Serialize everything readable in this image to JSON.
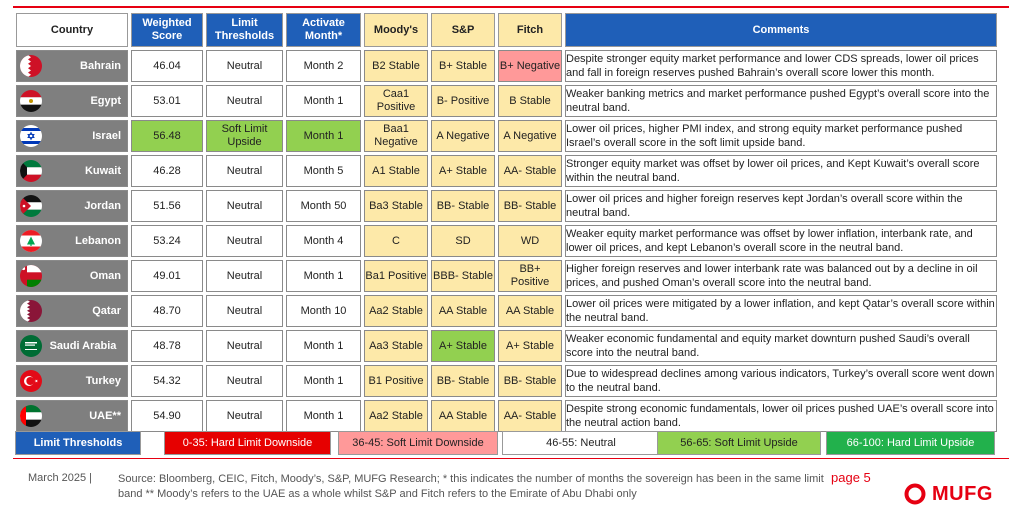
{
  "headers": {
    "country": "Country",
    "score": "Weighted Score",
    "limits": "Limit Thresholds",
    "month": "Activate Month*",
    "moodys": "Moody's",
    "sp": "S&P",
    "fitch": "Fitch",
    "comments": "Comments"
  },
  "rows": [
    {
      "country": "Bahrain",
      "score": "46.04",
      "limit": "Neutral",
      "month": "Month 2",
      "moodys": "B2 Stable",
      "sp": "B+ Stable",
      "fitch": "B+ Negative",
      "comment": "Despite stronger equity market performance and lower CDS spreads, lower oil prices and fall in foreign reserves pushed Bahrain’s overall score lower this month."
    },
    {
      "country": "Egypt",
      "score": "53.01",
      "limit": "Neutral",
      "month": "Month 1",
      "moodys": "Caa1 Positive",
      "sp": "B- Positive",
      "fitch": "B Stable",
      "comment": "Weaker banking metrics and market performance pushed Egypt’s overall score into the neutral band."
    },
    {
      "country": "Israel",
      "score": "56.48",
      "limit": "Soft Limit Upside",
      "month": "Month 1",
      "moodys": "Baa1 Negative",
      "sp": "A Negative",
      "fitch": "A Negative",
      "comment": "Lower oil prices, higher PMI index, and strong equity market performance pushed Israel’s overall score in the soft limit upside band."
    },
    {
      "country": "Kuwait",
      "score": "46.28",
      "limit": "Neutral",
      "month": "Month 5",
      "moodys": "A1 Stable",
      "sp": "A+ Stable",
      "fitch": "AA- Stable",
      "comment": "Stronger equity market was offset by lower oil prices, and Kept Kuwait’s overall score within the neutral band."
    },
    {
      "country": "Jordan",
      "score": "51.56",
      "limit": "Neutral",
      "month": "Month 50",
      "moodys": "Ba3 Stable",
      "sp": "BB- Stable",
      "fitch": "BB- Stable",
      "comment": "Lower oil prices and higher foreign reserves kept Jordan’s overall score within the neutral band."
    },
    {
      "country": "Lebanon",
      "score": "53.24",
      "limit": "Neutral",
      "month": "Month 4",
      "moodys": "C",
      "sp": "SD",
      "fitch": "WD",
      "comment": "Weaker equity market performance was offset by lower inflation, interbank rate, and lower oil prices, and kept Lebanon’s overall score in the neutral band."
    },
    {
      "country": "Oman",
      "score": "49.01",
      "limit": "Neutral",
      "month": "Month 1",
      "moodys": "Ba1 Positive",
      "sp": "BBB- Stable",
      "fitch": "BB+ Positive",
      "comment": "Higher foreign reserves and lower interbank rate was balanced out by a decline in oil prices, and pushed Oman’s overall score into the neutral band."
    },
    {
      "country": "Qatar",
      "score": "48.70",
      "limit": "Neutral",
      "month": "Month 10",
      "moodys": "Aa2 Stable",
      "sp": "AA Stable",
      "fitch": "AA Stable",
      "comment": "Lower oil prices were mitigated by a lower inflation, and kept Qatar’s overall score within the neutral band."
    },
    {
      "country": "Saudi Arabia",
      "score": "48.78",
      "limit": "Neutral",
      "month": "Month 1",
      "moodys": "Aa3 Stable",
      "sp": "A+ Stable",
      "fitch": "A+ Stable",
      "comment": "Weaker economic fundamental and equity market downturn pushed Saudi’s overall score into the neutral band."
    },
    {
      "country": "Turkey",
      "score": "54.32",
      "limit": "Neutral",
      "month": "Month 1",
      "moodys": "B1 Positive",
      "sp": "BB- Stable",
      "fitch": "BB- Stable",
      "comment": "Due to widespread declines among various indicators, Turkey’s overall score went down to the neutral band."
    },
    {
      "country": "UAE**",
      "score": "54.90",
      "limit": "Neutral",
      "month": "Month 1",
      "moodys": "Aa2 Stable",
      "sp": "AA Stable",
      "fitch": "AA- Stable",
      "comment": "Despite strong economic fundamentals, lower oil prices pushed UAE’s overall score into the neutral action band."
    }
  ],
  "legend": [
    {
      "label": "Limit Thresholds",
      "bg": "#1f5fb8",
      "fg": "#ffffff"
    },
    {
      "label": "0-35: Hard Limit Downside",
      "bg": "#e60000",
      "fg": "#ffffff"
    },
    {
      "label": "36-45: Soft Limit Downside",
      "bg": "#ff9999",
      "fg": "#222222"
    },
    {
      "label": "46-55: Neutral",
      "bg": "#ffffff",
      "fg": "#222222"
    },
    {
      "label": "56-65: Soft Limit Upside",
      "bg": "#92d050",
      "fg": "#222222"
    },
    {
      "label": "66-100: Hard Limit Upside",
      "bg": "#22b14c",
      "fg": "#ffffff"
    }
  ],
  "footer": {
    "date": "March 2025 |",
    "source": "Source: Bloomberg, CEIC, Fitch, Moody’s, S&P, MUFG Research; * this indicates the number of months the sovereign has been in the same limit band ** Moody’s refers to the UAE as a whole whilst S&P and Fitch refers to the Emirate of Abu Dhabi only",
    "page": "page 5",
    "logo": "MUFG"
  },
  "colors": {
    "header_blue": "#1f5fb8",
    "rating_yellow": "#fde9a9",
    "upside_green": "#92d050",
    "downside_pink": "#ff9999",
    "country_grey": "#7f7f7f",
    "mufg_red": "#e60012"
  }
}
